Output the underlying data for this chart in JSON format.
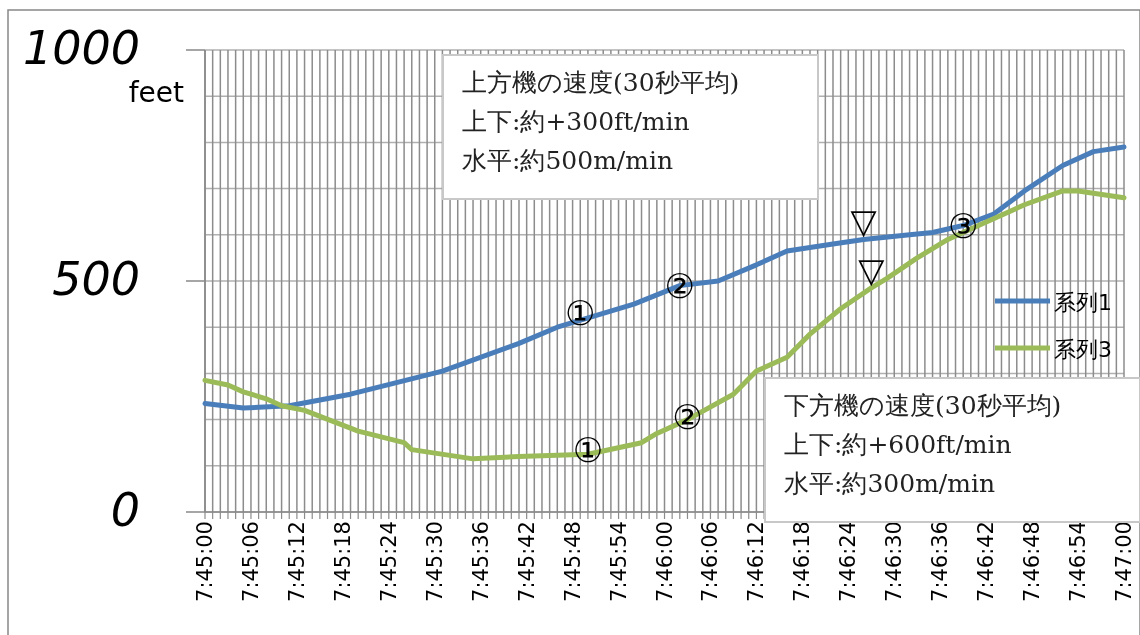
{
  "chart_data": {
    "type": "line",
    "ylabel": "feet",
    "xlim": [
      7.75,
      7.783333
    ],
    "ylim": [
      0,
      1000
    ],
    "yticks": [
      0,
      {
        "value": 100,
        "label": null
      },
      {
        "value": 200,
        "label": null
      },
      {
        "value": 300,
        "label": null
      },
      {
        "value": 400,
        "label": null
      },
      500,
      {
        "value": 600,
        "label": null
      },
      {
        "value": 700,
        "label": null
      },
      {
        "value": 800,
        "label": null
      },
      {
        "value": 900,
        "label": null
      },
      1000
    ],
    "xticks": [
      {
        "value": 7.75,
        "label": "7:45:00"
      },
      {
        "value": 7.750278,
        "label": null
      },
      {
        "value": 7.750556,
        "label": null
      },
      {
        "value": 7.750833,
        "label": null
      },
      {
        "value": 7.751111,
        "label": null
      },
      {
        "value": 7.751389,
        "label": null
      },
      {
        "value": 7.751667,
        "label": "7:45:06"
      },
      {
        "value": 7.751944,
        "label": null
      },
      {
        "value": 7.752222,
        "label": null
      },
      {
        "value": 7.7525,
        "label": null
      },
      {
        "value": 7.752778,
        "label": null
      },
      {
        "value": 7.753056,
        "label": null
      },
      {
        "value": 7.753333,
        "label": "7:45:12"
      },
      {
        "value": 7.753611,
        "label": null
      },
      {
        "value": 7.753889,
        "label": null
      },
      {
        "value": 7.754167,
        "label": null
      },
      {
        "value": 7.754444,
        "label": null
      },
      {
        "value": 7.754722,
        "label": null
      },
      {
        "value": 7.755,
        "label": "7:45:18"
      },
      {
        "value": 7.755278,
        "label": null
      },
      {
        "value": 7.755556,
        "label": null
      },
      {
        "value": 7.755833,
        "label": null
      },
      {
        "value": 7.756111,
        "label": null
      },
      {
        "value": 7.756389,
        "label": null
      },
      {
        "value": 7.756667,
        "label": "7:45:24"
      },
      {
        "value": 7.756944,
        "label": null
      },
      {
        "value": 7.757222,
        "label": null
      },
      {
        "value": 7.7575,
        "label": null
      },
      {
        "value": 7.757778,
        "label": null
      },
      {
        "value": 7.758056,
        "label": null
      },
      {
        "value": 7.758333,
        "label": "7:45:30"
      },
      {
        "value": 7.758611,
        "label": null
      },
      {
        "value": 7.758889,
        "label": null
      },
      {
        "value": 7.759167,
        "label": null
      },
      {
        "value": 7.759444,
        "label": null
      },
      {
        "value": 7.759722,
        "label": null
      },
      {
        "value": 7.76,
        "label": "7:45:36"
      },
      {
        "value": 7.760278,
        "label": null
      },
      {
        "value": 7.760556,
        "label": null
      },
      {
        "value": 7.760833,
        "label": null
      },
      {
        "value": 7.761111,
        "label": null
      },
      {
        "value": 7.761389,
        "label": null
      },
      {
        "value": 7.761667,
        "label": "7:45:42"
      },
      {
        "value": 7.761944,
        "label": null
      },
      {
        "value": 7.762222,
        "label": null
      },
      {
        "value": 7.7625,
        "label": null
      },
      {
        "value": 7.762778,
        "label": null
      },
      {
        "value": 7.763056,
        "label": null
      },
      {
        "value": 7.763333,
        "label": "7:45:48"
      },
      {
        "value": 7.763611,
        "label": null
      },
      {
        "value": 7.763889,
        "label": null
      },
      {
        "value": 7.764167,
        "label": null
      },
      {
        "value": 7.764444,
        "label": null
      },
      {
        "value": 7.764722,
        "label": null
      },
      {
        "value": 7.765,
        "label": "7:45:54"
      },
      {
        "value": 7.765278,
        "label": null
      },
      {
        "value": 7.765556,
        "label": null
      },
      {
        "value": 7.765833,
        "label": null
      },
      {
        "value": 7.766111,
        "label": null
      },
      {
        "value": 7.766389,
        "label": null
      },
      {
        "value": 7.766667,
        "label": "7:46:00"
      },
      {
        "value": 7.766944,
        "label": null
      },
      {
        "value": 7.767222,
        "label": null
      },
      {
        "value": 7.7675,
        "label": null
      },
      {
        "value": 7.767778,
        "label": null
      },
      {
        "value": 7.768056,
        "label": null
      },
      {
        "value": 7.768333,
        "label": "7:46:06"
      },
      {
        "value": 7.768611,
        "label": null
      },
      {
        "value": 7.768889,
        "label": null
      },
      {
        "value": 7.769167,
        "label": null
      },
      {
        "value": 7.769444,
        "label": null
      },
      {
        "value": 7.769722,
        "label": null
      },
      {
        "value": 7.77,
        "label": "7:46:12"
      },
      {
        "value": 7.770278,
        "label": null
      },
      {
        "value": 7.770556,
        "label": null
      },
      {
        "value": 7.770833,
        "label": null
      },
      {
        "value": 7.771111,
        "label": null
      },
      {
        "value": 7.771389,
        "label": null
      },
      {
        "value": 7.771667,
        "label": "7:46:18"
      },
      {
        "value": 7.771944,
        "label": null
      },
      {
        "value": 7.772222,
        "label": null
      },
      {
        "value": 7.7725,
        "label": null
      },
      {
        "value": 7.772778,
        "label": null
      },
      {
        "value": 7.773056,
        "label": null
      },
      {
        "value": 7.773333,
        "label": "7:46:24"
      },
      {
        "value": 7.773611,
        "label": null
      },
      {
        "value": 7.773889,
        "label": null
      },
      {
        "value": 7.774167,
        "label": null
      },
      {
        "value": 7.774444,
        "label": null
      },
      {
        "value": 7.774722,
        "label": null
      },
      {
        "value": 7.775,
        "label": "7:46:30"
      },
      {
        "value": 7.775278,
        "label": null
      },
      {
        "value": 7.775556,
        "label": null
      },
      {
        "value": 7.775833,
        "label": null
      },
      {
        "value": 7.776111,
        "label": null
      },
      {
        "value": 7.776389,
        "label": null
      },
      {
        "value": 7.776667,
        "label": "7:46:36"
      },
      {
        "value": 7.776944,
        "label": null
      },
      {
        "value": 7.777222,
        "label": null
      },
      {
        "value": 7.7775,
        "label": null
      },
      {
        "value": 7.777778,
        "label": null
      },
      {
        "value": 7.778056,
        "label": null
      },
      {
        "value": 7.778333,
        "label": "7:46:42"
      },
      {
        "value": 7.778611,
        "label": null
      },
      {
        "value": 7.778889,
        "label": null
      },
      {
        "value": 7.779167,
        "label": null
      },
      {
        "value": 7.779444,
        "label": null
      },
      {
        "value": 7.779722,
        "label": null
      },
      {
        "value": 7.78,
        "label": "7:46:48"
      },
      {
        "value": 7.780278,
        "label": null
      },
      {
        "value": 7.780556,
        "label": null
      },
      {
        "value": 7.780833,
        "label": null
      },
      {
        "value": 7.781111,
        "label": null
      },
      {
        "value": 7.781389,
        "label": null
      },
      {
        "value": 7.781667,
        "label": "7:46:54"
      },
      {
        "value": 7.781944,
        "label": null
      },
      {
        "value": 7.782222,
        "label": null
      },
      {
        "value": 7.7825,
        "label": null
      },
      {
        "value": 7.782778,
        "label": null
      },
      {
        "value": 7.783056,
        "label": null
      },
      {
        "value": 7.783333,
        "label": "7:47:00"
      }
    ],
    "grid": true,
    "legend": "right",
    "marker": "none",
    "line_style": "solid",
    "series": [
      {
        "name": "系列1",
        "color": "#4a7ebb",
        "x": [
          7.75,
          7.751389,
          7.753056,
          7.755278,
          7.758611,
          7.761389,
          7.762778,
          7.765556,
          7.767222,
          7.768611,
          7.77,
          7.771111,
          7.772778,
          7.773889,
          7.775556,
          7.776389,
          7.7775,
          7.778611,
          7.779722,
          7.781111,
          7.782222,
          7.783333
        ],
        "values": [
          235,
          225,
          230,
          255,
          305,
          365,
          400,
          450,
          490,
          500,
          535,
          565,
          580,
          590,
          600,
          605,
          620,
          645,
          695,
          750,
          780,
          790
        ]
      },
      {
        "name": "系列3",
        "color": "#9bbb59",
        "x": [
          7.75,
          7.750833,
          7.751389,
          7.752222,
          7.752778,
          7.753611,
          7.755556,
          7.757222,
          7.7575,
          7.759722,
          7.761389,
          7.763889,
          7.765833,
          7.766389,
          7.7675,
          7.769167,
          7.77,
          7.771111,
          7.771944,
          7.773056,
          7.774167,
          7.774722,
          7.775833,
          7.776944,
          7.778056,
          7.779722,
          7.781111,
          7.781667,
          7.783333
        ],
        "values": [
          285,
          275,
          260,
          245,
          230,
          220,
          175,
          150,
          135,
          115,
          120,
          125,
          150,
          170,
          200,
          255,
          305,
          335,
          385,
          440,
          485,
          505,
          550,
          590,
          620,
          665,
          695,
          695,
          680
        ]
      }
    ],
    "annotations": [
      "上方機の速度(30秒平均)\n上下:約+300ft/min\n水平:約500m/min",
      "下方機の速度(30秒平均)\n上下:約+600ft/min\n水平:約300m/min",
      {
        "text": "①",
        "x": 7.763611,
        "y": 430
      },
      {
        "text": "②",
        "x": 7.767222,
        "y": 490
      },
      {
        "text": "①",
        "x": 7.763889,
        "y": 135
      },
      {
        "text": "②",
        "x": 7.7675,
        "y": 205
      },
      {
        "text": "③",
        "x": 7.7775,
        "y": 620
      },
      {
        "text": "▽",
        "x": 7.773889,
        "y": 590
      },
      {
        "text": "▽",
        "x": 7.774167,
        "y": 485
      }
    ]
  }
}
